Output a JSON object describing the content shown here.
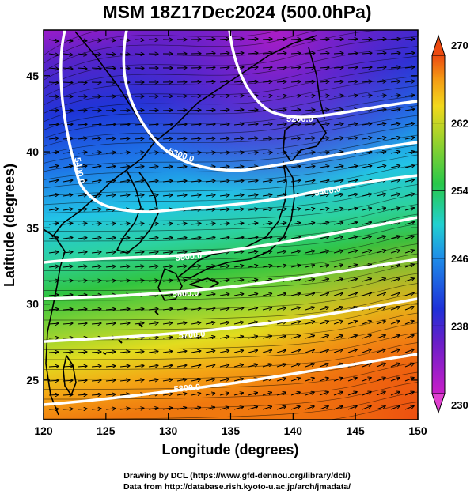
{
  "title": "MSM 18Z17Dec2024 (500.0hPa)",
  "xlabel": "Longitude (degrees)",
  "ylabel": "Latitude  (degrees)",
  "x_ticks": [
    "120",
    "125",
    "130",
    "135",
    "140",
    "145",
    "150"
  ],
  "y_ticks": [
    "25",
    "30",
    "35",
    "40",
    "45"
  ],
  "colorbar": {
    "ticks": [
      "230",
      "238",
      "246",
      "254",
      "262",
      "270"
    ],
    "range": [
      230,
      270
    ]
  },
  "contours": [
    {
      "label": "5200.0"
    },
    {
      "label": "5300.0"
    },
    {
      "label": "5400.0"
    },
    {
      "label": "5400.0"
    },
    {
      "label": "5500.0"
    },
    {
      "label": "5600.0"
    },
    {
      "label": "5700.0"
    },
    {
      "label": "5800.0"
    }
  ],
  "credits": {
    "line1": "Drawing by DCL (https://www.gfd-dennou.org/library/dcl/)",
    "line2": "Data from http://database.rish.kyoto-u.ac.jp/arch/jmadata/"
  },
  "colors": {
    "wind_arrows": "#000000",
    "contours": "#ffffff",
    "coastline": "#000000"
  },
  "icons": [
    "wind-vector-arrow-icon",
    "colorbar-up-triangle-icon",
    "colorbar-down-triangle-icon"
  ]
}
